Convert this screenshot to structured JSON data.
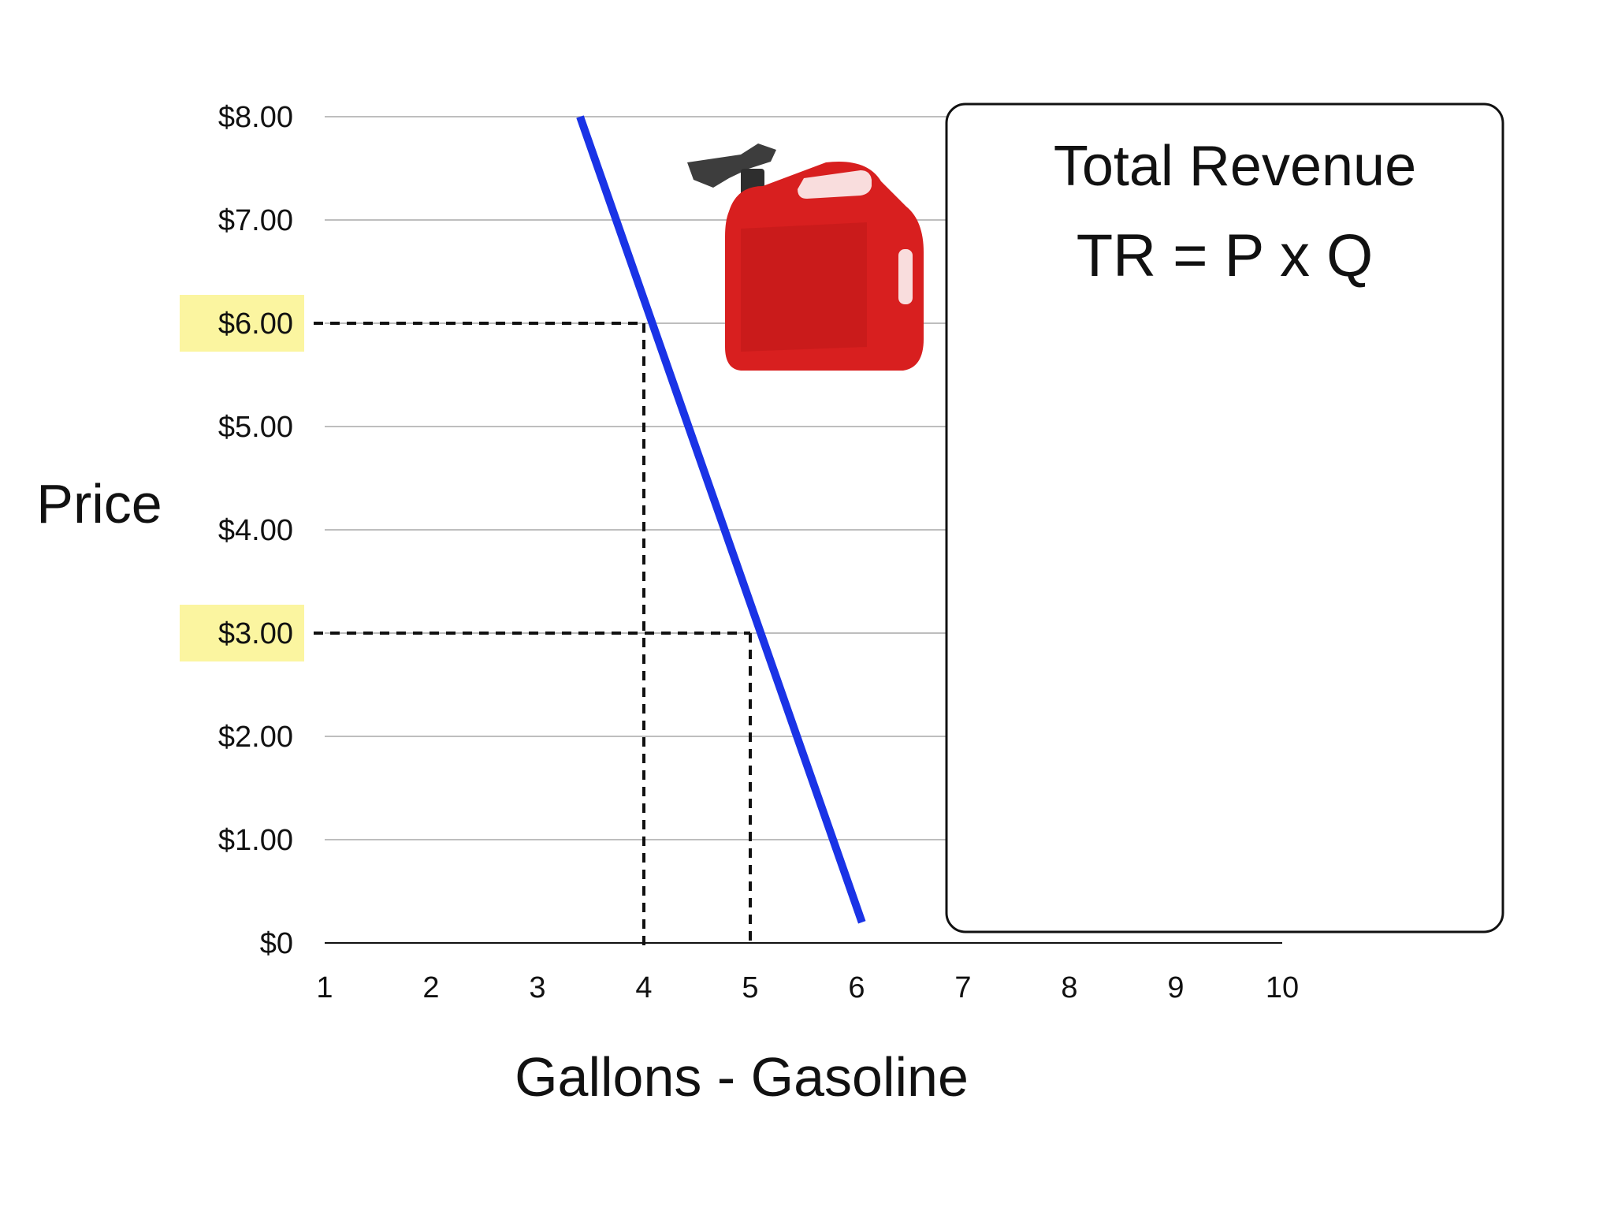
{
  "chart_data": {
    "type": "line",
    "xlabel": "Gallons - Gasoline",
    "ylabel": "Price",
    "x_ticks": [
      "1",
      "2",
      "3",
      "4",
      "5",
      "6",
      "7",
      "8",
      "9",
      "10"
    ],
    "y_ticks": [
      "$0",
      "$1.00",
      "$2.00",
      "$3.00",
      "$4.00",
      "$5.00",
      "$6.00",
      "$7.00",
      "$8.00"
    ],
    "xlim": [
      1,
      10
    ],
    "ylim": [
      0,
      8
    ],
    "grid": true,
    "series": [
      {
        "x": [
          3.4,
          6.05
        ],
        "y": [
          8.0,
          0.2
        ],
        "color": "#1a33e6"
      }
    ],
    "highlighted_prices": [
      {
        "label": "$6.00",
        "price": 6,
        "quantity": 4
      },
      {
        "label": "$3.00",
        "price": 3,
        "quantity": 5
      }
    ],
    "highlight_color": "#fbf5a0",
    "annotation_box": {
      "title": "Total Revenue",
      "formula": "TR = P x Q"
    },
    "image": {
      "icon": "gasoline-can-icon",
      "color": "#d81f1f"
    }
  }
}
